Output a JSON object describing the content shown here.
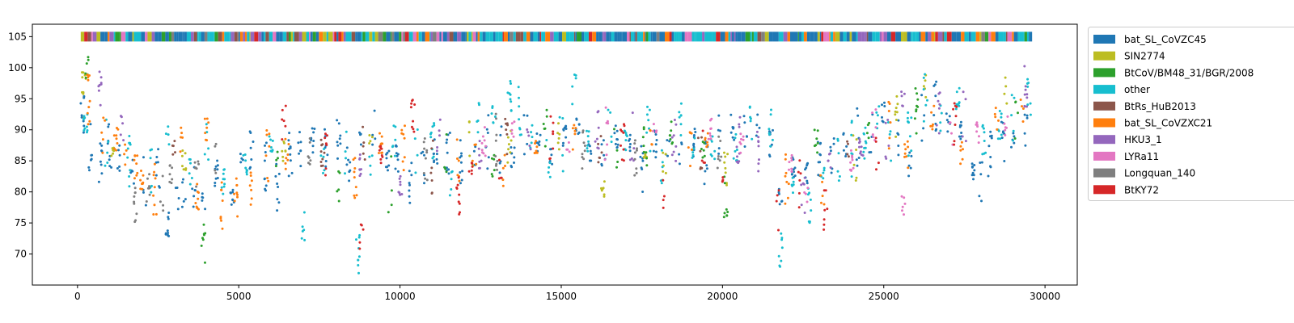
{
  "chart_data": {
    "type": "scatter",
    "title": "",
    "xlabel": "",
    "ylabel": "",
    "xlim": [
      -1400,
      31000
    ],
    "ylim": [
      65,
      107
    ],
    "x_ticks": [
      0,
      5000,
      10000,
      15000,
      20000,
      25000,
      30000
    ],
    "x_tick_labels": [
      "0",
      "5000",
      "10000",
      "15000",
      "20000",
      "25000",
      "30000"
    ],
    "y_ticks": [
      70,
      75,
      80,
      85,
      90,
      95,
      100,
      105
    ],
    "y_tick_labels": [
      "70",
      "75",
      "80",
      "85",
      "90",
      "95",
      "100",
      "105"
    ],
    "grid": false,
    "legend_placement": "outside-right-top",
    "barcode_y": 105,
    "barcode_x_range": [
      100,
      29600
    ],
    "series": [
      {
        "name": "bat_SL_CoVZC45",
        "color": "#1f77b4",
        "points": [
          [
            150,
            93
          ],
          [
            400,
            87
          ],
          [
            700,
            85
          ],
          [
            1000,
            88
          ],
          [
            1300,
            86
          ],
          [
            1700,
            83
          ],
          [
            2100,
            82
          ],
          [
            2500,
            84
          ],
          [
            2800,
            75
          ],
          [
            3100,
            79
          ],
          [
            3300,
            80
          ],
          [
            3600,
            81
          ],
          [
            3900,
            78
          ],
          [
            4300,
            83
          ],
          [
            4800,
            79
          ],
          [
            5100,
            86
          ],
          [
            5400,
            87
          ],
          [
            5800,
            84
          ],
          [
            6200,
            80
          ],
          [
            6600,
            86
          ],
          [
            6900,
            87
          ],
          [
            7300,
            88
          ],
          [
            7700,
            87
          ],
          [
            8100,
            89
          ],
          [
            8400,
            84
          ],
          [
            8800,
            88
          ],
          [
            9200,
            90
          ],
          [
            9600,
            85
          ],
          [
            9900,
            86
          ],
          [
            10300,
            82
          ],
          [
            10700,
            84
          ],
          [
            11100,
            86
          ],
          [
            11500,
            87
          ],
          [
            11900,
            85
          ],
          [
            12300,
            89
          ],
          [
            12700,
            88
          ],
          [
            13100,
            87
          ],
          [
            13500,
            86
          ],
          [
            13900,
            90
          ],
          [
            14300,
            88
          ],
          [
            14700,
            87
          ],
          [
            15100,
            89
          ],
          [
            15500,
            90
          ],
          [
            15900,
            87
          ],
          [
            16300,
            86
          ],
          [
            16700,
            89
          ],
          [
            17100,
            88
          ],
          [
            17500,
            84
          ],
          [
            17900,
            88
          ],
          [
            18300,
            87
          ],
          [
            18700,
            86
          ],
          [
            19100,
            88
          ],
          [
            19500,
            85
          ],
          [
            19900,
            89
          ],
          [
            20300,
            91
          ],
          [
            20700,
            90
          ],
          [
            21100,
            91
          ],
          [
            21500,
            88
          ],
          [
            21800,
            79
          ],
          [
            22200,
            84
          ],
          [
            22600,
            83
          ],
          [
            23000,
            85
          ],
          [
            23400,
            86
          ],
          [
            23800,
            88
          ],
          [
            24200,
            89
          ],
          [
            24600,
            90
          ],
          [
            25000,
            92
          ],
          [
            25400,
            89
          ],
          [
            25800,
            85
          ],
          [
            26200,
            92
          ],
          [
            26600,
            94
          ],
          [
            27000,
            91
          ],
          [
            27400,
            90
          ],
          [
            27800,
            84
          ],
          [
            28000,
            81
          ],
          [
            28300,
            86
          ],
          [
            28700,
            89
          ],
          [
            29000,
            88
          ],
          [
            29400,
            90
          ]
        ]
      },
      {
        "name": "SIN2774",
        "color": "#bcbd22",
        "points": [
          [
            200,
            96
          ],
          [
            1100,
            87
          ],
          [
            3300,
            85
          ],
          [
            6400,
            86
          ],
          [
            9100,
            88
          ],
          [
            12200,
            88
          ],
          [
            13400,
            87
          ],
          [
            14900,
            88
          ],
          [
            16300,
            80
          ],
          [
            17600,
            87
          ],
          [
            18200,
            86
          ],
          [
            20100,
            84
          ],
          [
            24100,
            86
          ],
          [
            25400,
            91
          ],
          [
            26300,
            97
          ],
          [
            28800,
            96
          ]
        ]
      },
      {
        "name": "BtCoV/BM48_31/BGR/2008",
        "color": "#2ca02c",
        "points": [
          [
            300,
            98
          ],
          [
            3900,
            71
          ],
          [
            6200,
            85
          ],
          [
            8100,
            81
          ],
          [
            9700,
            81
          ],
          [
            11400,
            86
          ],
          [
            12900,
            84
          ],
          [
            14500,
            89
          ],
          [
            16700,
            88
          ],
          [
            17600,
            86
          ],
          [
            18400,
            89
          ],
          [
            19400,
            87
          ],
          [
            20100,
            80
          ],
          [
            22900,
            88
          ],
          [
            24500,
            90
          ],
          [
            26000,
            93
          ],
          [
            29100,
            92
          ]
        ]
      },
      {
        "name": "other",
        "color": "#17becf",
        "points": [
          [
            250,
            91
          ],
          [
            900,
            88
          ],
          [
            1600,
            85
          ],
          [
            2300,
            82
          ],
          [
            2800,
            88
          ],
          [
            3500,
            83
          ],
          [
            4000,
            87
          ],
          [
            4500,
            82
          ],
          [
            5200,
            84
          ],
          [
            6000,
            88
          ],
          [
            7000,
            76
          ],
          [
            7600,
            85
          ],
          [
            8300,
            86
          ],
          [
            8700,
            70
          ],
          [
            9100,
            85
          ],
          [
            9800,
            88
          ],
          [
            10500,
            86
          ],
          [
            11000,
            88
          ],
          [
            11600,
            82
          ],
          [
            12400,
            92
          ],
          [
            12900,
            91
          ],
          [
            13400,
            96
          ],
          [
            13700,
            93
          ],
          [
            14100,
            89
          ],
          [
            14600,
            86
          ],
          [
            15000,
            88
          ],
          [
            15400,
            96
          ],
          [
            15800,
            88
          ],
          [
            16500,
            91
          ],
          [
            17000,
            88
          ],
          [
            17700,
            90
          ],
          [
            18100,
            84
          ],
          [
            18700,
            91
          ],
          [
            19100,
            86
          ],
          [
            19700,
            89
          ],
          [
            20400,
            88
          ],
          [
            20900,
            92
          ],
          [
            21500,
            90
          ],
          [
            21800,
            69
          ],
          [
            22200,
            80
          ],
          [
            22700,
            78
          ],
          [
            23100,
            84
          ],
          [
            23600,
            86
          ],
          [
            24000,
            87
          ],
          [
            24400,
            88
          ],
          [
            24800,
            92
          ],
          [
            25200,
            88
          ],
          [
            25800,
            89
          ],
          [
            26300,
            95
          ],
          [
            26800,
            92
          ],
          [
            27300,
            95
          ],
          [
            28100,
            88
          ],
          [
            28600,
            91
          ],
          [
            29000,
            92
          ],
          [
            29500,
            94
          ]
        ]
      },
      {
        "name": "BtRs_HuB2013",
        "color": "#8c564b",
        "points": [
          [
            3000,
            87
          ],
          [
            7600,
            86
          ],
          [
            8900,
            88
          ],
          [
            11000,
            84
          ],
          [
            13300,
            88
          ],
          [
            16200,
            87
          ],
          [
            19300,
            86
          ],
          [
            23900,
            86
          ]
        ]
      },
      {
        "name": "bat_SL_CoVZXC21",
        "color": "#ff7f0e",
        "points": [
          [
            350,
            95
          ],
          [
            800,
            89
          ],
          [
            1200,
            88
          ],
          [
            1500,
            86
          ],
          [
            1800,
            84
          ],
          [
            2000,
            82
          ],
          [
            2400,
            80
          ],
          [
            3200,
            88
          ],
          [
            3700,
            79
          ],
          [
            4000,
            90
          ],
          [
            4500,
            78
          ],
          [
            4900,
            79
          ],
          [
            5400,
            81
          ],
          [
            5900,
            85
          ],
          [
            6500,
            87
          ],
          [
            8600,
            82
          ],
          [
            9400,
            88
          ],
          [
            10100,
            87
          ],
          [
            11800,
            85
          ],
          [
            12300,
            86
          ],
          [
            13200,
            84
          ],
          [
            14200,
            87
          ],
          [
            15400,
            89
          ],
          [
            17800,
            88
          ],
          [
            19000,
            86
          ],
          [
            19500,
            88
          ],
          [
            22000,
            82
          ],
          [
            23100,
            82
          ],
          [
            25200,
            90
          ],
          [
            25700,
            86
          ],
          [
            26500,
            92
          ],
          [
            27400,
            86
          ],
          [
            28500,
            92
          ],
          [
            29300,
            93
          ]
        ]
      },
      {
        "name": "HKU3_1",
        "color": "#9467bd",
        "points": [
          [
            700,
            97
          ],
          [
            1400,
            90
          ],
          [
            8800,
            84
          ],
          [
            10000,
            81
          ],
          [
            11200,
            89
          ],
          [
            12500,
            86
          ],
          [
            14000,
            88
          ],
          [
            16100,
            90
          ],
          [
            17200,
            89
          ],
          [
            18500,
            89
          ],
          [
            20500,
            88
          ],
          [
            21100,
            87
          ],
          [
            22500,
            80
          ],
          [
            23300,
            84
          ],
          [
            24300,
            87
          ],
          [
            25100,
            89
          ],
          [
            25600,
            94
          ],
          [
            26700,
            93
          ],
          [
            27500,
            92
          ],
          [
            29400,
            97
          ]
        ]
      },
      {
        "name": "LYRa11",
        "color": "#e377c2",
        "points": [
          [
            12600,
            88
          ],
          [
            13500,
            90
          ],
          [
            15200,
            88
          ],
          [
            16400,
            89
          ],
          [
            17900,
            90
          ],
          [
            19600,
            90
          ],
          [
            20600,
            87
          ],
          [
            22100,
            85
          ],
          [
            22600,
            80
          ],
          [
            24000,
            85
          ],
          [
            24700,
            90
          ],
          [
            25600,
            78
          ],
          [
            27100,
            91
          ],
          [
            27900,
            90
          ],
          [
            28800,
            91
          ]
        ]
      },
      {
        "name": "Longquan_140",
        "color": "#7f7f7f",
        "points": [
          [
            1800,
            78
          ],
          [
            2200,
            81
          ],
          [
            2600,
            80
          ],
          [
            2900,
            83
          ],
          [
            3700,
            84
          ],
          [
            4300,
            85
          ],
          [
            7200,
            86
          ],
          [
            10800,
            85
          ],
          [
            13000,
            88
          ],
          [
            15700,
            87
          ],
          [
            17300,
            86
          ],
          [
            19900,
            85
          ]
        ]
      },
      {
        "name": "BtKY72",
        "color": "#d62728",
        "points": [
          [
            6400,
            92
          ],
          [
            7700,
            86
          ],
          [
            8800,
            74
          ],
          [
            9400,
            86
          ],
          [
            10400,
            94
          ],
          [
            11800,
            79
          ],
          [
            12200,
            84
          ],
          [
            13100,
            86
          ],
          [
            14700,
            90
          ],
          [
            16900,
            88
          ],
          [
            18200,
            80
          ],
          [
            19400,
            86
          ],
          [
            20000,
            81
          ],
          [
            21700,
            78
          ],
          [
            22400,
            81
          ],
          [
            23200,
            76
          ],
          [
            24800,
            86
          ],
          [
            27200,
            91
          ]
        ]
      }
    ],
    "legend": [
      {
        "label": "bat_SL_CoVZC45",
        "color": "#1f77b4"
      },
      {
        "label": "SIN2774",
        "color": "#bcbd22"
      },
      {
        "label": "BtCoV/BM48_31/BGR/2008",
        "color": "#2ca02c"
      },
      {
        "label": "other",
        "color": "#17becf"
      },
      {
        "label": "BtRs_HuB2013",
        "color": "#8c564b"
      },
      {
        "label": "bat_SL_CoVZXC21",
        "color": "#ff7f0e"
      },
      {
        "label": "HKU3_1",
        "color": "#9467bd"
      },
      {
        "label": "LYRa11",
        "color": "#e377c2"
      },
      {
        "label": "Longquan_140",
        "color": "#7f7f7f"
      },
      {
        "label": "BtKY72",
        "color": "#d62728"
      }
    ]
  }
}
